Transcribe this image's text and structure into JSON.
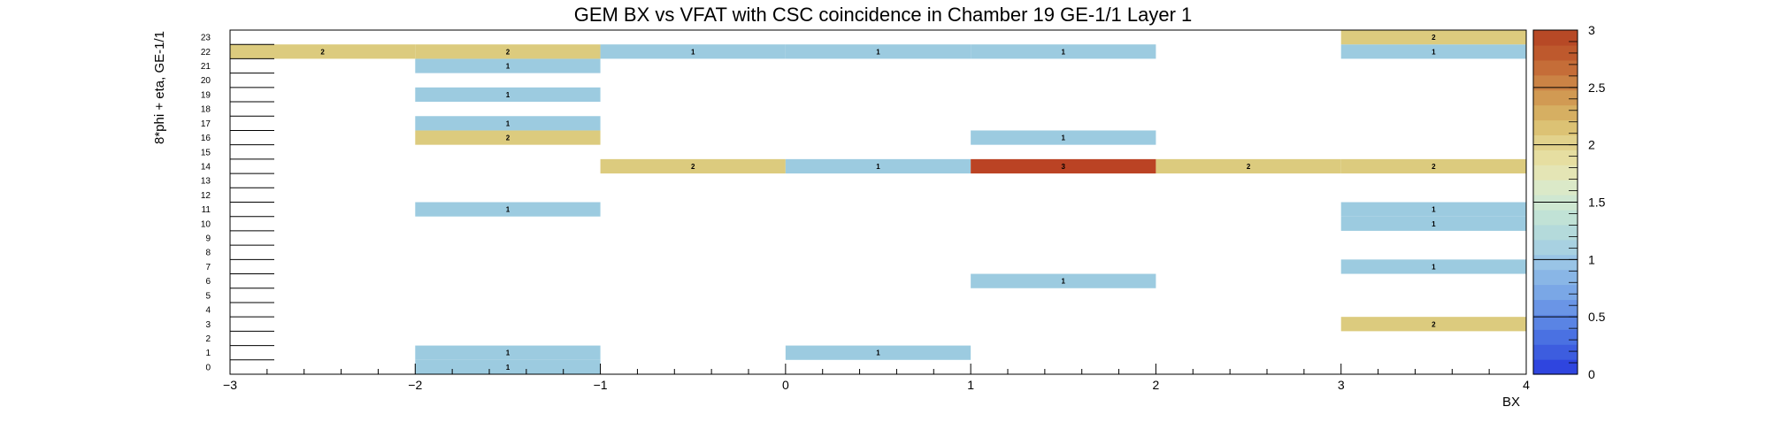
{
  "chart_data": {
    "type": "heatmap",
    "title": "GEM BX vs VFAT with CSC coincidence in Chamber 19 GE-1/1 Layer 1",
    "xlabel": "BX",
    "ylabel": "8*phi + eta, GE-1/1",
    "xlim": [
      -3,
      4
    ],
    "ylim": [
      0,
      24
    ],
    "x_tick_labels": [
      "−3",
      "−2",
      "−1",
      "0",
      "1",
      "2",
      "3",
      "4"
    ],
    "y_tick_labels": [
      "0",
      "1",
      "2",
      "3",
      "4",
      "5",
      "6",
      "7",
      "8",
      "9",
      "10",
      "11",
      "12",
      "13",
      "14",
      "15",
      "16",
      "17",
      "18",
      "19",
      "20",
      "21",
      "22",
      "23"
    ],
    "colorbar": {
      "min": 0,
      "max": 3,
      "tick_values": [
        0,
        0.5,
        1,
        1.5,
        2,
        2.5,
        3
      ],
      "tick_labels": [
        "0",
        "0.5",
        "1",
        "1.5",
        "2",
        "2.5",
        "3"
      ]
    },
    "cells": [
      {
        "x": [
          -2,
          -1
        ],
        "y": 0,
        "value": 1
      },
      {
        "x": [
          -2,
          -1
        ],
        "y": 1,
        "value": 1
      },
      {
        "x": [
          0,
          1
        ],
        "y": 1,
        "value": 1
      },
      {
        "x": [
          3,
          4
        ],
        "y": 3,
        "value": 2
      },
      {
        "x": [
          1,
          2
        ],
        "y": 6,
        "value": 1
      },
      {
        "x": [
          3,
          4
        ],
        "y": 7,
        "value": 1
      },
      {
        "x": [
          3,
          4
        ],
        "y": 10,
        "value": 1
      },
      {
        "x": [
          -2,
          -1
        ],
        "y": 11,
        "value": 1
      },
      {
        "x": [
          3,
          4
        ],
        "y": 11,
        "value": 1
      },
      {
        "x": [
          -1,
          0
        ],
        "y": 14,
        "value": 2
      },
      {
        "x": [
          0,
          1
        ],
        "y": 14,
        "value": 1
      },
      {
        "x": [
          1,
          2
        ],
        "y": 14,
        "value": 3
      },
      {
        "x": [
          2,
          3
        ],
        "y": 14,
        "value": 2
      },
      {
        "x": [
          3,
          4
        ],
        "y": 14,
        "value": 2
      },
      {
        "x": [
          -2,
          -1
        ],
        "y": 16,
        "value": 2
      },
      {
        "x": [
          1,
          2
        ],
        "y": 16,
        "value": 1
      },
      {
        "x": [
          -2,
          -1
        ],
        "y": 17,
        "value": 1
      },
      {
        "x": [
          -2,
          -1
        ],
        "y": 19,
        "value": 1
      },
      {
        "x": [
          -2,
          -1
        ],
        "y": 21,
        "value": 1
      },
      {
        "x": [
          -3,
          -2
        ],
        "y": 22,
        "value": 2
      },
      {
        "x": [
          -2,
          -1
        ],
        "y": 22,
        "value": 2
      },
      {
        "x": [
          -1,
          0
        ],
        "y": 22,
        "value": 1
      },
      {
        "x": [
          0,
          1
        ],
        "y": 22,
        "value": 1
      },
      {
        "x": [
          1,
          2
        ],
        "y": 22,
        "value": 1
      },
      {
        "x": [
          3,
          4
        ],
        "y": 22,
        "value": 1
      },
      {
        "x": [
          3,
          4
        ],
        "y": 23,
        "value": 2
      }
    ]
  },
  "colors": {
    "value_1": "#9ccbe0",
    "value_2": "#dccb7e",
    "value_3": "#bb4324",
    "axis": "#000000",
    "colorbar_palette": [
      "#2f45df",
      "#3d5ddf",
      "#4a71e2",
      "#5a84e4",
      "#6a95e6",
      "#7aa7e6",
      "#89b6e6",
      "#99c4e6",
      "#a8d1e1",
      "#b4dadb",
      "#c1e2d6",
      "#cfe7d1",
      "#dbe9c8",
      "#e4e5b5",
      "#e6dea1",
      "#e2d28c",
      "#dcc274",
      "#d6af62",
      "#d19a53",
      "#cb8345",
      "#c56d38",
      "#be592d",
      "#b74926"
    ]
  }
}
